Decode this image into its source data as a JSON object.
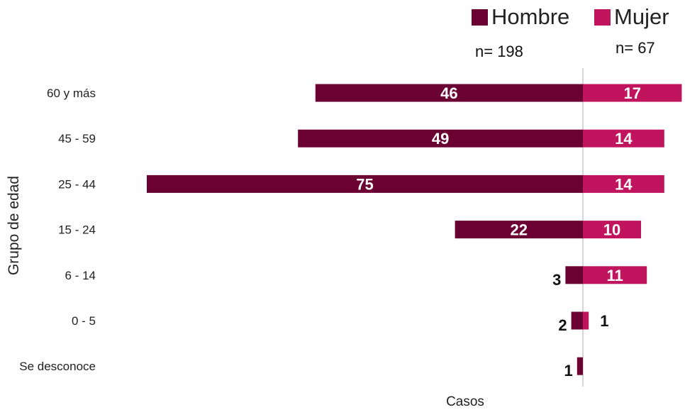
{
  "chart_data": {
    "type": "bar",
    "orientation": "horizontal-diverging",
    "categories": [
      "60 y más",
      "45 - 59",
      "25 - 44",
      "15 - 24",
      "6 - 14",
      "0 - 5",
      "Se desconoce"
    ],
    "series": [
      {
        "name": "Hombre",
        "values": [
          46,
          49,
          75,
          22,
          3,
          2,
          1
        ],
        "color": "#6b0033"
      },
      {
        "name": "Mujer",
        "values": [
          17,
          14,
          14,
          10,
          11,
          1,
          null
        ],
        "color": "#c0155e"
      }
    ],
    "legend": {
      "position": "top-right",
      "items": [
        {
          "label": "Hombre",
          "n": "n= 198"
        },
        {
          "label": "Mujer",
          "n": "n= 67"
        }
      ]
    },
    "xlabel": "Casos",
    "ylabel": "Grupo de edad",
    "grid": false
  }
}
